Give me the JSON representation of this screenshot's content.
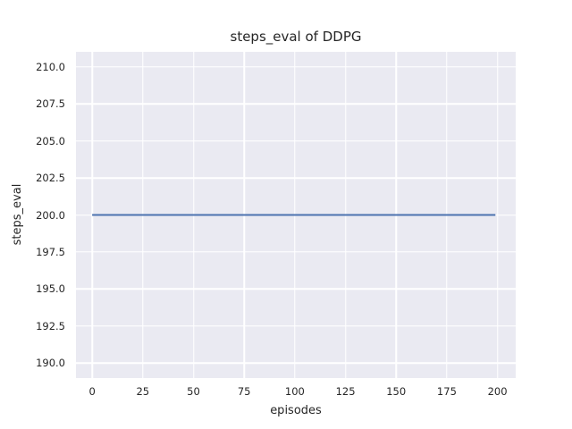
{
  "figure": {
    "bg_color": "#ffffff",
    "plot_bg_color": "#eaeaf2",
    "grid_color": "#ffffff",
    "text_color": "#262626"
  },
  "chart_data": {
    "type": "line",
    "title": "steps_eval of DDPG",
    "xlabel": "episodes",
    "ylabel": "steps_eval",
    "xlim": [
      -8,
      209
    ],
    "ylim": [
      189,
      211
    ],
    "x_ticks": [
      0,
      25,
      50,
      75,
      100,
      125,
      150,
      175,
      200
    ],
    "x_tick_labels": [
      "0",
      "25",
      "50",
      "75",
      "100",
      "125",
      "150",
      "175",
      "200"
    ],
    "y_ticks": [
      190.0,
      192.5,
      195.0,
      197.5,
      200.0,
      202.5,
      205.0,
      207.5,
      210.0
    ],
    "y_tick_labels": [
      "190.0",
      "192.5",
      "195.0",
      "197.5",
      "200.0",
      "202.5",
      "205.0",
      "207.5",
      "210.0"
    ],
    "grid": true,
    "legend_position": "none",
    "series": [
      {
        "name": "steps_eval",
        "color": "#4c72b0",
        "line_width": 2,
        "x": [
          0,
          199
        ],
        "y": [
          200,
          200
        ]
      }
    ]
  }
}
